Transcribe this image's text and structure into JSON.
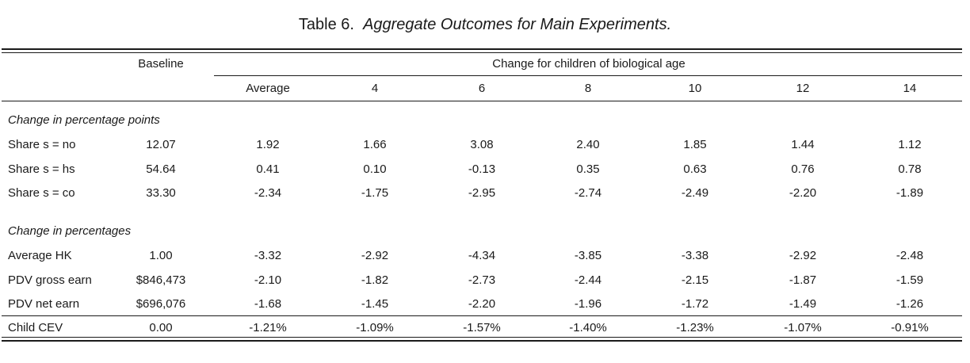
{
  "title": {
    "label": "Table 6.",
    "text": "Aggregate Outcomes for Main Experiments."
  },
  "header": {
    "baseline": "Baseline",
    "change_group": "Change for children of biological age",
    "columns": [
      "Average",
      "4",
      "6",
      "8",
      "10",
      "12",
      "14"
    ]
  },
  "sections": [
    {
      "heading": "Change in percentage points",
      "rows": [
        {
          "label": "Share s = no",
          "baseline": "12.07",
          "values": [
            "1.92",
            "1.66",
            "3.08",
            "2.40",
            "1.85",
            "1.44",
            "1.12"
          ]
        },
        {
          "label": "Share s = hs",
          "baseline": "54.64",
          "values": [
            "0.41",
            "0.10",
            "-0.13",
            "0.35",
            "0.63",
            "0.76",
            "0.78"
          ]
        },
        {
          "label": "Share s = co",
          "baseline": "33.30",
          "values": [
            "-2.34",
            "-1.75",
            "-2.95",
            "-2.74",
            "-2.49",
            "-2.20",
            "-1.89"
          ]
        }
      ]
    },
    {
      "heading": "Change in percentages",
      "rows": [
        {
          "label": "Average HK",
          "baseline": "1.00",
          "values": [
            "-3.32",
            "-2.92",
            "-4.34",
            "-3.85",
            "-3.38",
            "-2.92",
            "-2.48"
          ]
        },
        {
          "label": "PDV gross earn",
          "baseline": "$846,473",
          "values": [
            "-2.10",
            "-1.82",
            "-2.73",
            "-2.44",
            "-2.15",
            "-1.87",
            "-1.59"
          ]
        },
        {
          "label": "PDV net earn",
          "baseline": "$696,076",
          "values": [
            "-1.68",
            "-1.45",
            "-2.20",
            "-1.96",
            "-1.72",
            "-1.49",
            "-1.26"
          ]
        }
      ]
    }
  ],
  "footer_row": {
    "label": "Child CEV",
    "baseline": "0.00",
    "values": [
      "-1.21%",
      "-1.09%",
      "-1.57%",
      "-1.40%",
      "-1.23%",
      "-1.07%",
      "-0.91%"
    ]
  }
}
